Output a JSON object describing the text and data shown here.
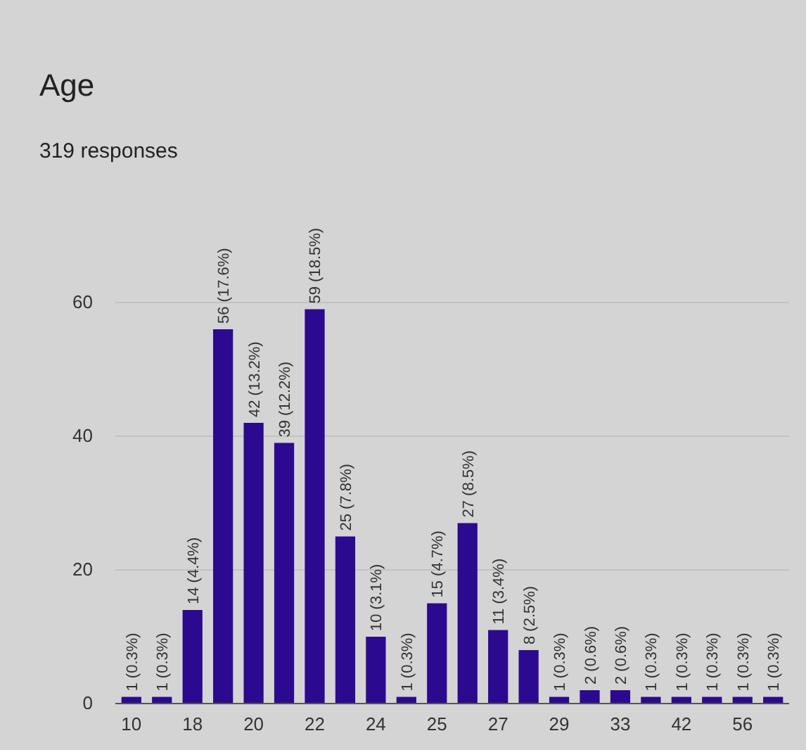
{
  "chart_data": {
    "type": "bar",
    "title": "Age",
    "subtitle": "319 responses",
    "categories": [
      "10",
      null,
      "18",
      null,
      "20",
      null,
      "22",
      null,
      "24",
      null,
      "25",
      null,
      "27",
      null,
      "29",
      null,
      "33",
      null,
      "42",
      null,
      "56",
      null
    ],
    "values": [
      1,
      1,
      14,
      56,
      42,
      39,
      59,
      25,
      10,
      1,
      15,
      27,
      11,
      8,
      1,
      2,
      2,
      1,
      1,
      1,
      1,
      1
    ],
    "value_labels": [
      "1 (0.3%)",
      "1 (0.3%)",
      "14 (4.4%)",
      "56 (17.6%)",
      "42 (13.2%)",
      "39 (12.2%)",
      "59 (18.5%)",
      "25 (7.8%)",
      "10 (3.1%)",
      "1 (0.3%)",
      "15 (4.7%)",
      "27 (8.5%)",
      "11 (3.4%)",
      "8 (2.5%)",
      "1 (0.3%)",
      "2 (0.6%)",
      "2 (0.6%)",
      "1 (0.3%)",
      "1 (0.3%)",
      "1 (0.3%)",
      "1 (0.3%)",
      "1 (0.3%)"
    ],
    "color": "#2b0a8f",
    "ylim": [
      0,
      60
    ],
    "yticks": [
      0,
      20,
      40,
      60
    ],
    "grid": "y"
  }
}
